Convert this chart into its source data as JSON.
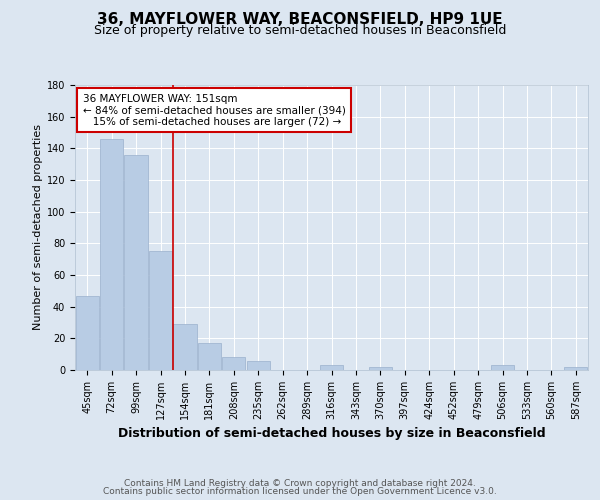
{
  "title": "36, MAYFLOWER WAY, BEACONSFIELD, HP9 1UE",
  "subtitle": "Size of property relative to semi-detached houses in Beaconsfield",
  "xlabel": "Distribution of semi-detached houses by size in Beaconsfield",
  "ylabel": "Number of semi-detached properties",
  "categories": [
    "45sqm",
    "72sqm",
    "99sqm",
    "127sqm",
    "154sqm",
    "181sqm",
    "208sqm",
    "235sqm",
    "262sqm",
    "289sqm",
    "316sqm",
    "343sqm",
    "370sqm",
    "397sqm",
    "424sqm",
    "452sqm",
    "479sqm",
    "506sqm",
    "533sqm",
    "560sqm",
    "587sqm"
  ],
  "values": [
    47,
    146,
    136,
    75,
    29,
    17,
    8,
    6,
    0,
    0,
    3,
    0,
    2,
    0,
    0,
    0,
    0,
    3,
    0,
    0,
    2
  ],
  "bar_color": "#b8cce4",
  "bar_edge_color": "#9ab0cc",
  "highlight_line_color": "#cc0000",
  "annotation_line1": "36 MAYFLOWER WAY: 151sqm",
  "annotation_line2": "← 84% of semi-detached houses are smaller (394)",
  "annotation_line3": "   15% of semi-detached houses are larger (72) →",
  "annotation_box_color": "#cc0000",
  "ylim": [
    0,
    180
  ],
  "yticks": [
    0,
    20,
    40,
    60,
    80,
    100,
    120,
    140,
    160,
    180
  ],
  "background_color": "#dce6f1",
  "footer_line1": "Contains HM Land Registry data © Crown copyright and database right 2024.",
  "footer_line2": "Contains public sector information licensed under the Open Government Licence v3.0.",
  "title_fontsize": 11,
  "subtitle_fontsize": 9,
  "xlabel_fontsize": 9,
  "ylabel_fontsize": 8,
  "tick_fontsize": 7,
  "footer_fontsize": 6.5,
  "annotation_fontsize": 7.5
}
